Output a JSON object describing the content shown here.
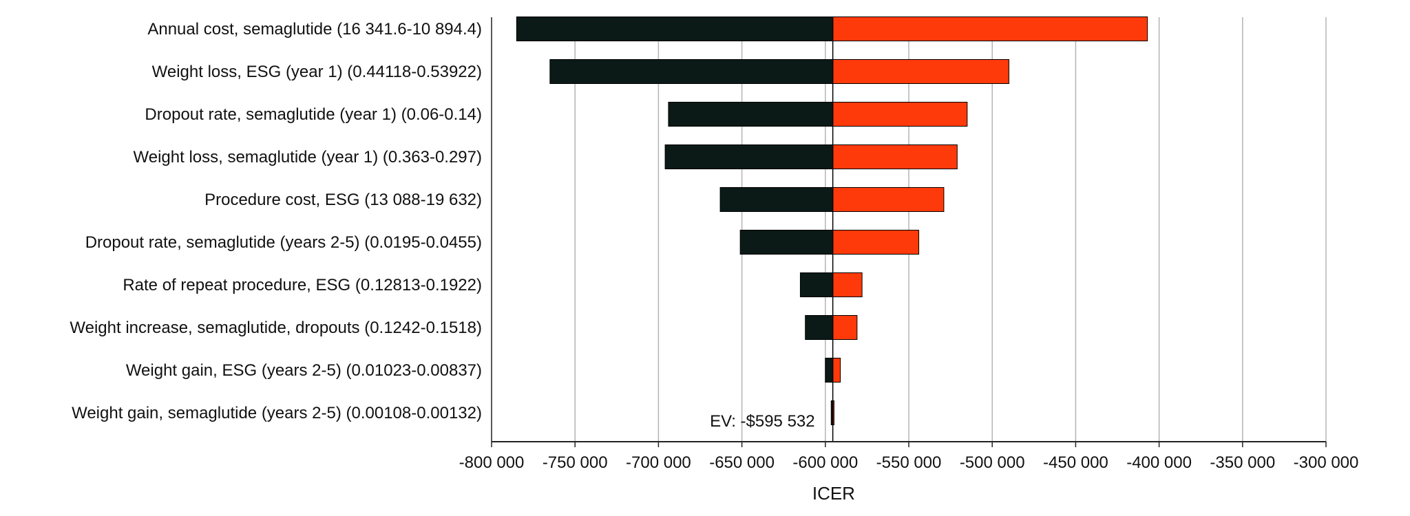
{
  "chart_data": {
    "type": "tornado",
    "xlabel": "ICER",
    "xlim": [
      -800000,
      -300000
    ],
    "xticks": [
      -800000,
      -750000,
      -700000,
      -650000,
      -600000,
      -550000,
      -500000,
      -450000,
      -400000,
      -350000,
      -300000
    ],
    "xtick_labels": [
      "-800 000",
      "-750 000",
      "-700 000",
      "-650 000",
      "-600 000",
      "-550 000",
      "-500 000",
      "-450 000",
      "-400 000",
      "-350 000",
      "-300 000"
    ],
    "base_value": -595532,
    "base_label": "EV: -$595 532",
    "grid": true,
    "colors": {
      "low": "#0b1a17",
      "high": "#ff3a0a",
      "grid": "#b3b3b3",
      "axis": "#222222"
    },
    "variables": [
      {
        "label": "Annual cost, semaglutide (16 341.6-10 894.4)",
        "low": -785000,
        "high": -407000
      },
      {
        "label": "Weight loss, ESG (year 1) (0.44118-0.53922)",
        "low": -765000,
        "high": -490000
      },
      {
        "label": "Dropout rate, semaglutide (year 1) (0.06-0.14)",
        "low": -694000,
        "high": -515000
      },
      {
        "label": "Weight loss, semaglutide (year 1) (0.363-0.297)",
        "low": -696000,
        "high": -521000
      },
      {
        "label": "Procedure cost, ESG (13 088-19 632)",
        "low": -663000,
        "high": -529000
      },
      {
        "label": "Dropout rate, semaglutide (years 2-5) (0.0195-0.0455)",
        "low": -651000,
        "high": -544000
      },
      {
        "label": "Rate of repeat procedure, ESG (0.12813-0.1922)",
        "low": -615000,
        "high": -578000
      },
      {
        "label": "Weight increase, semaglutide, dropouts (0.1242-0.1518)",
        "low": -612000,
        "high": -581000
      },
      {
        "label": "Weight gain, ESG (years 2-5) (0.01023-0.00837)",
        "low": -600000,
        "high": -591000
      },
      {
        "label": "Weight gain, semaglutide (years 2-5) (0.00108-0.00132)",
        "low": -596500,
        "high": -594800
      }
    ]
  }
}
